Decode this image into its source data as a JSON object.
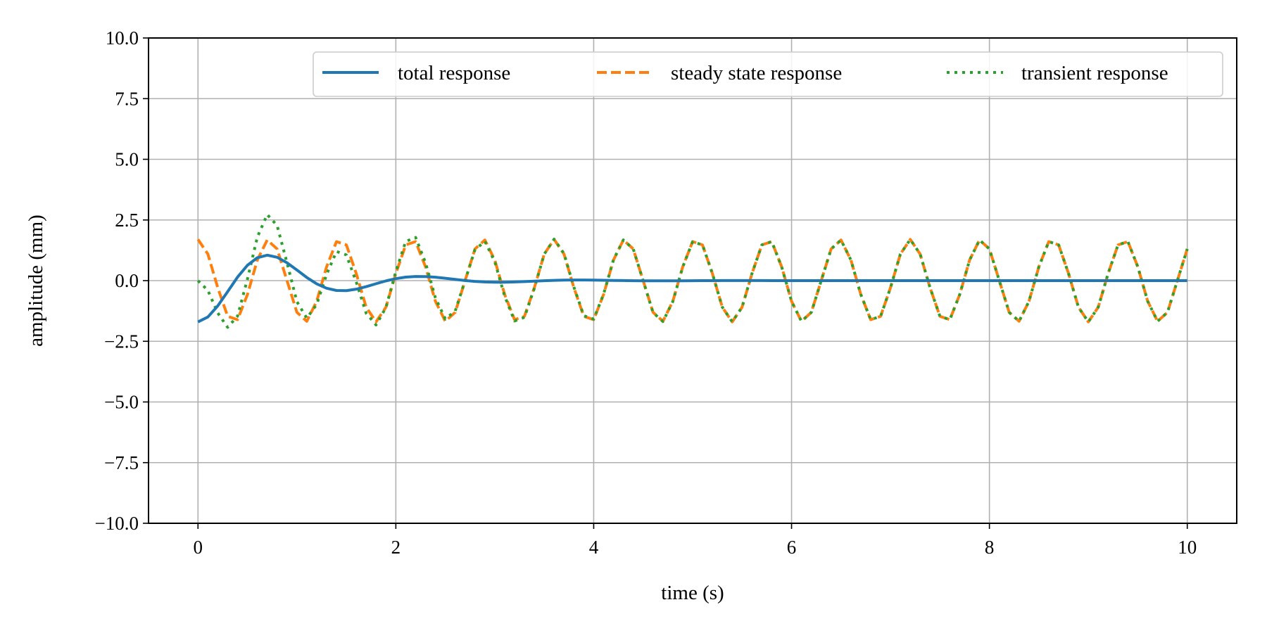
{
  "chart_data": {
    "type": "line",
    "xlabel": "time (s)",
    "ylabel": "amplitude (mm)",
    "xlim": [
      -0.5,
      10.5
    ],
    "ylim": [
      -10,
      10
    ],
    "xticks": [
      0,
      2,
      4,
      6,
      8,
      10
    ],
    "xtick_labels": [
      "0",
      "2",
      "4",
      "6",
      "8",
      "10"
    ],
    "yticks": [
      10,
      7.5,
      5,
      2.5,
      0,
      -2.5,
      -5,
      -7.5,
      -10
    ],
    "ytick_labels": [
      "10.0",
      "7.5",
      "5.0",
      "2.5",
      "0.0",
      "−2.5",
      "−5.0",
      "−7.5",
      "−10.0"
    ],
    "grid": true,
    "legend_position": "top-right",
    "x": [
      0,
      0.1,
      0.2,
      0.3,
      0.4,
      0.5,
      0.6,
      0.7,
      0.8,
      0.9,
      1.0,
      1.1,
      1.2,
      1.3,
      1.4,
      1.5,
      1.6,
      1.7,
      1.8,
      1.9,
      2.0,
      2.1,
      2.2,
      2.3,
      2.4,
      2.5,
      2.6,
      2.7,
      2.8,
      2.9,
      3.0,
      3.1,
      3.2,
      3.3,
      3.4,
      3.5,
      3.6,
      3.7,
      3.8,
      3.9,
      4.0,
      4.1,
      4.2,
      4.3,
      4.4,
      4.5,
      4.6,
      4.7,
      4.8,
      4.9,
      5.0,
      5.1,
      5.2,
      5.3,
      5.4,
      5.5,
      5.6,
      5.7,
      5.8,
      5.9,
      6.0,
      6.1,
      6.2,
      6.3,
      6.4,
      6.5,
      6.6,
      6.7,
      6.8,
      6.9,
      7.0,
      7.1,
      7.2,
      7.3,
      7.4,
      7.5,
      7.6,
      7.7,
      7.8,
      7.9,
      8.0,
      8.1,
      8.2,
      8.3,
      8.4,
      8.5,
      8.6,
      8.7,
      8.8,
      8.9,
      9.0,
      9.1,
      9.2,
      9.3,
      9.4,
      9.5,
      9.6,
      9.7,
      9.8,
      9.9,
      10.0
    ],
    "series": [
      {
        "name": "total response",
        "color": "#1f77b4",
        "dash": "solid",
        "values": [
          -1.7,
          -1.497,
          -1.041,
          -0.452,
          0.146,
          0.634,
          0.945,
          1.049,
          0.962,
          0.735,
          0.437,
          0.13,
          -0.131,
          -0.314,
          -0.406,
          -0.413,
          -0.352,
          -0.248,
          -0.127,
          -0.011,
          0.082,
          0.144,
          0.172,
          0.168,
          0.141,
          0.098,
          0.05,
          0.005,
          -0.032,
          -0.056,
          -0.067,
          -0.066,
          -0.056,
          -0.04,
          -0.021,
          -0.004,
          0.01,
          0.02,
          0.025,
          0.026,
          0.022,
          0.016,
          0.009,
          0.002,
          -0.003,
          -0.007,
          -0.009,
          -0.009,
          -0.008,
          -0.006,
          -0.004,
          -0.001,
          0.001,
          0.002,
          0.003,
          0.003,
          0.003,
          0.002,
          0.001,
          0.0,
          -0.0,
          -0.001,
          -0.001,
          -0.001,
          -0.001,
          -0.001,
          -0.0,
          -0.0,
          0.0,
          0.0,
          0.0,
          0.0,
          0.0,
          0.0,
          0.0,
          0.0,
          0.0,
          -0.0,
          -0.0,
          -0.0,
          -0.0,
          -0.0,
          -0.0,
          0.0,
          0.0,
          0.0,
          0.0,
          0.0,
          0.0,
          0.0,
          0.0,
          0.0,
          0.0,
          0.0,
          0.0,
          0.0,
          0.0,
          0.0,
          0.0,
          0.0,
          0.0
        ]
      },
      {
        "name": "steady state response",
        "color": "#ff7f0e",
        "dash": "dashed",
        "values": [
          1.7,
          1.094,
          -0.292,
          -1.472,
          -1.608,
          -0.57,
          0.85,
          1.675,
          1.306,
          0.0,
          -1.306,
          -1.675,
          -0.85,
          0.57,
          1.608,
          1.472,
          0.292,
          -1.094,
          -1.7,
          -1.094,
          0.292,
          1.472,
          1.608,
          0.57,
          -0.85,
          -1.675,
          -1.306,
          0.0,
          1.306,
          1.675,
          0.85,
          -0.57,
          -1.608,
          -1.472,
          -0.292,
          1.094,
          1.7,
          1.094,
          -0.292,
          -1.472,
          -1.608,
          -0.57,
          0.85,
          1.675,
          1.306,
          0.0,
          -1.306,
          -1.675,
          -0.85,
          0.57,
          1.608,
          1.472,
          0.292,
          -1.094,
          -1.7,
          -1.094,
          0.292,
          1.472,
          1.608,
          0.57,
          -0.85,
          -1.675,
          -1.306,
          0.0,
          1.306,
          1.675,
          0.85,
          -0.57,
          -1.608,
          -1.472,
          -0.292,
          1.094,
          1.7,
          1.094,
          -0.292,
          -1.472,
          -1.608,
          -0.57,
          0.85,
          1.675,
          1.306,
          0.0,
          -1.306,
          -1.675,
          -0.85,
          0.57,
          1.608,
          1.472,
          0.292,
          -1.094,
          -1.7,
          -1.094,
          0.292,
          1.472,
          1.608,
          0.57,
          -0.85,
          -1.675,
          -1.306,
          0.0,
          1.306
        ]
      },
      {
        "name": "transient response",
        "color": "#2ca02c",
        "dash": "dotted",
        "values": [
          0.0,
          -0.403,
          -1.333,
          -1.924,
          -1.462,
          0.064,
          1.795,
          2.724,
          2.268,
          0.735,
          -0.869,
          -1.545,
          -0.981,
          0.256,
          1.202,
          1.059,
          -0.06,
          -1.342,
          -1.827,
          -1.105,
          0.374,
          1.616,
          1.78,
          0.738,
          -0.709,
          -1.577,
          -1.256,
          0.005,
          1.274,
          1.619,
          0.783,
          -0.636,
          -1.664,
          -1.512,
          -0.313,
          1.09,
          1.71,
          1.114,
          -0.267,
          -1.446,
          -1.586,
          -0.554,
          0.859,
          1.677,
          1.303,
          -0.007,
          -1.315,
          -1.684,
          -0.858,
          0.564,
          1.604,
          1.471,
          0.293,
          -1.092,
          -1.697,
          -1.091,
          0.295,
          1.474,
          1.609,
          0.57,
          -0.85,
          -1.676,
          -1.307,
          -0.001,
          1.305,
          1.674,
          0.85,
          -0.57,
          -1.608,
          -1.472,
          -0.292,
          1.094,
          1.7,
          1.094,
          -0.292,
          -1.472,
          -1.608,
          -0.57,
          0.85,
          1.675,
          1.306,
          0.0,
          -1.306,
          -1.675,
          -0.85,
          0.57,
          1.608,
          1.472,
          0.292,
          -1.094,
          -1.7,
          -1.094,
          0.292,
          1.472,
          1.608,
          0.57,
          -0.85,
          -1.675,
          -1.306,
          0.0,
          1.306
        ]
      }
    ]
  }
}
